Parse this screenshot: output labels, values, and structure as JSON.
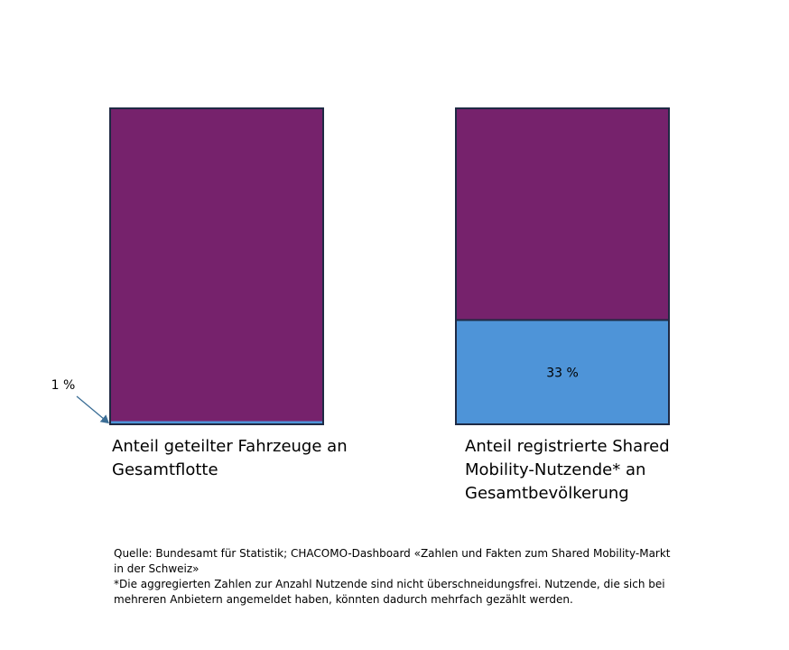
{
  "chart_data": {
    "type": "bar",
    "stacked": true,
    "categories": [
      "Anteil geteilter Fahrzeuge an Gesamtflotte",
      "Anteil registrierte Shared Mobility-Nutzende* an Gesamtbevölkerung"
    ],
    "series": [
      {
        "color": "#4e94d8",
        "values": [
          1,
          33
        ],
        "labels": [
          "1 %",
          "33 %"
        ]
      },
      {
        "color": "#76226c",
        "values": [
          99,
          67
        ]
      }
    ],
    "ylim": [
      0,
      100
    ],
    "grid": false,
    "legend": "none"
  },
  "notes": {
    "source": "Quelle: Bundesamt für Statistik; CHACOMO-Dashboard «Zahlen und Fakten zum Shared Mobility-Markt in der Schweiz»",
    "footnote": "*Die aggregierten Zahlen zur Anzahl Nutzende sind nicht überschneidungsfrei. Nutzende, die sich bei mehreren Anbietern angemeldet haben, könnten dadurch mehrfach gezählt werden."
  }
}
